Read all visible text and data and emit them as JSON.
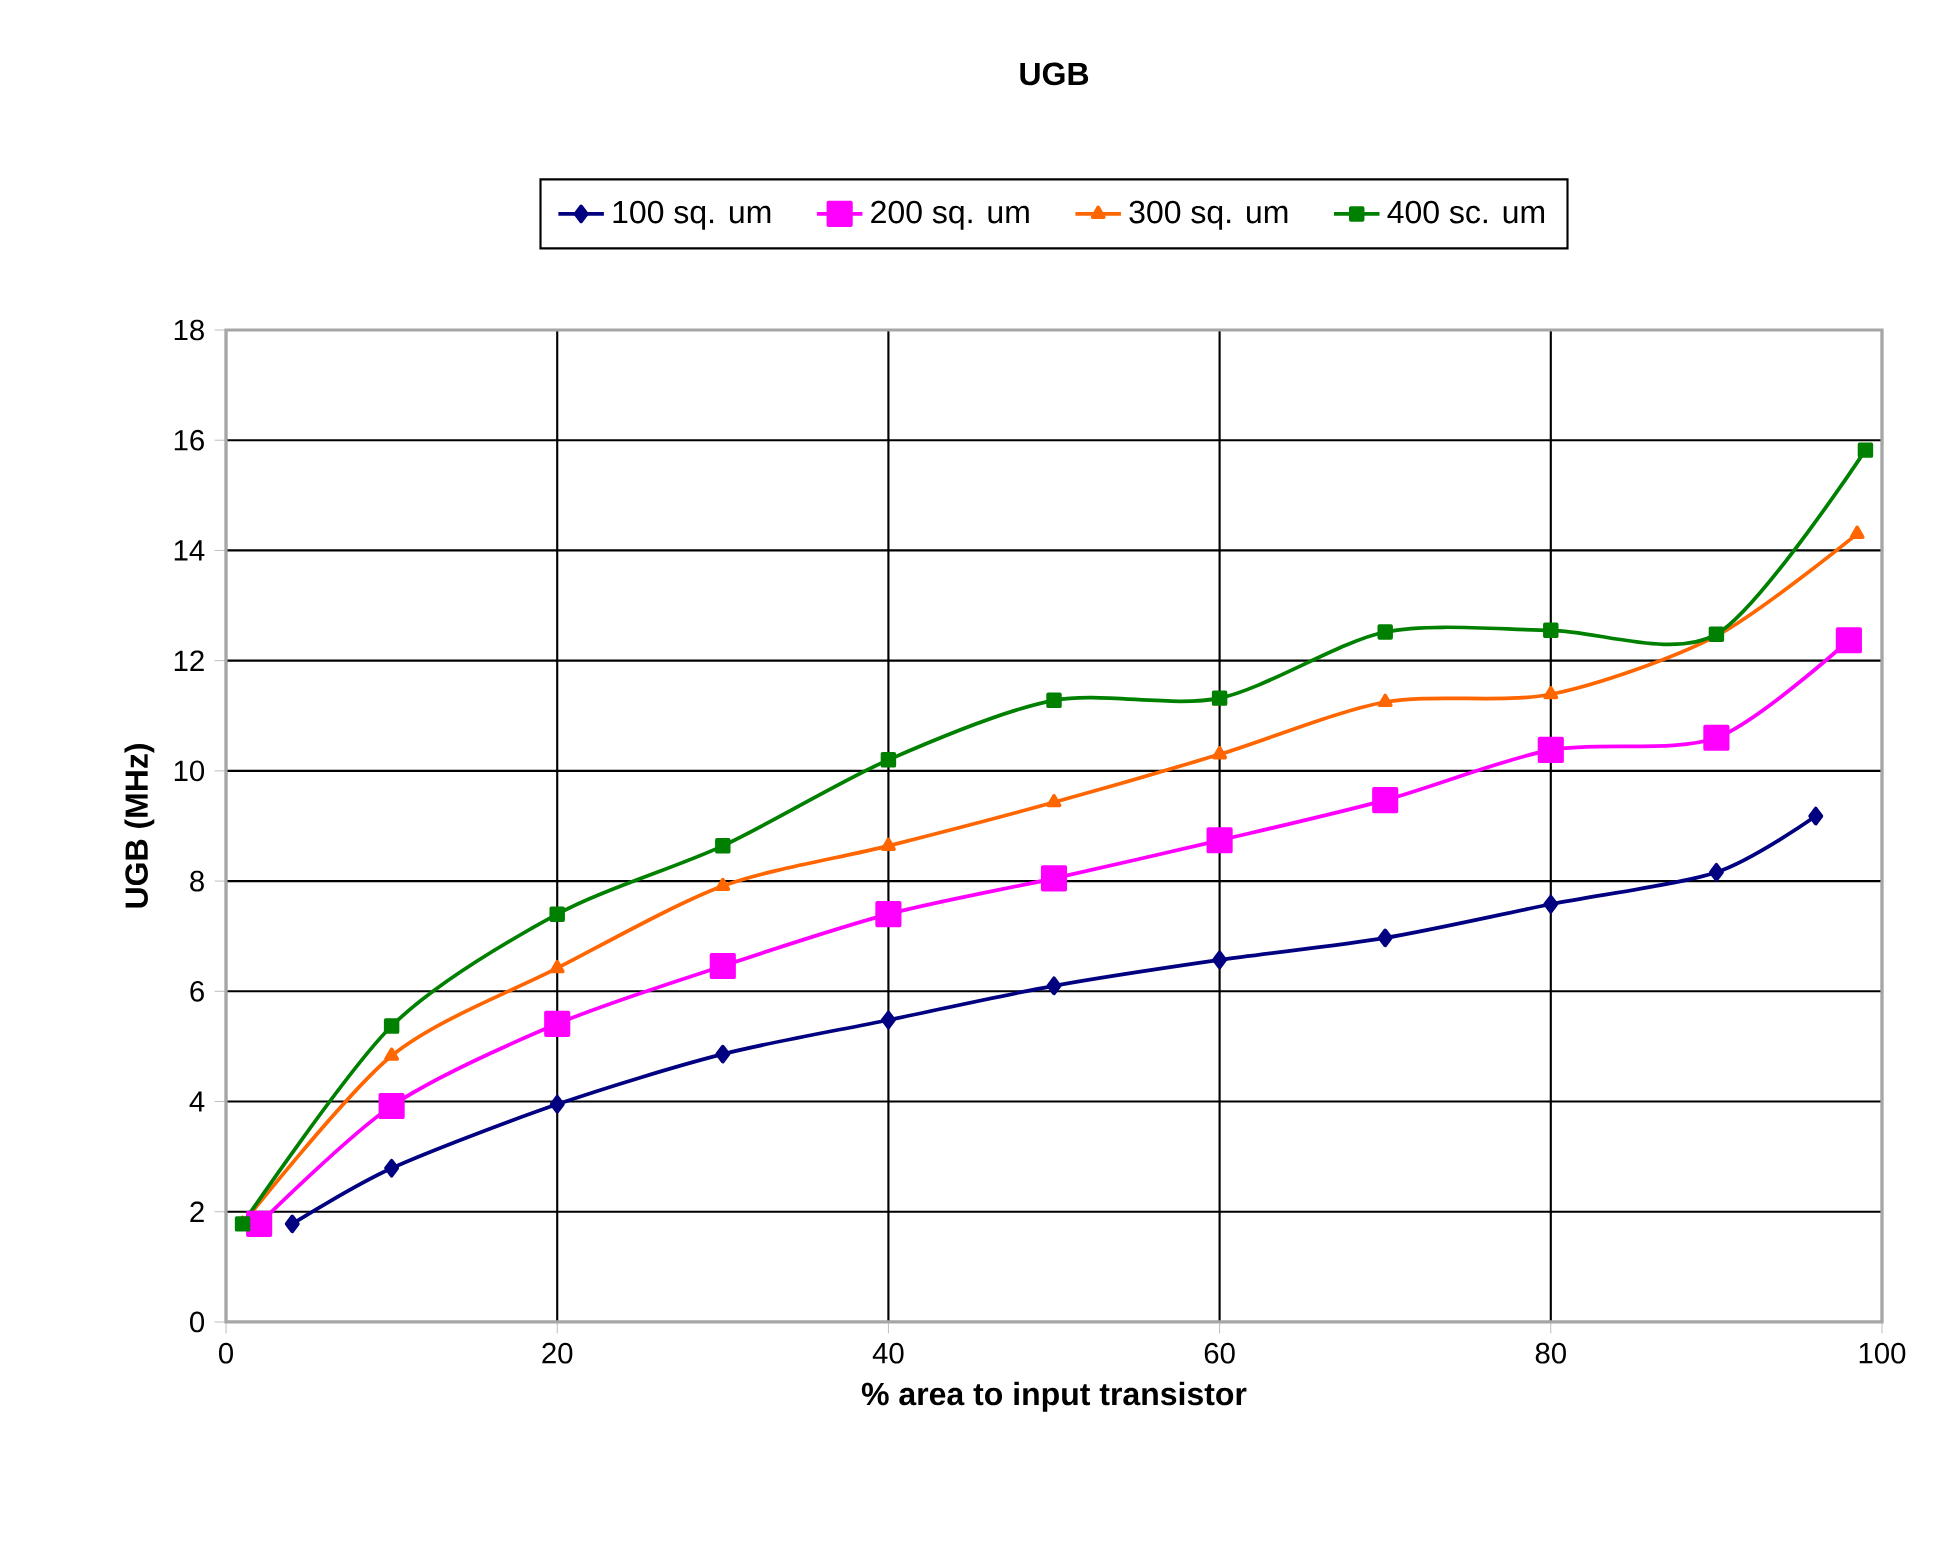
{
  "chart_data": {
    "type": "line",
    "title": "UGB",
    "xlabel": "% area to input transistor",
    "ylabel": "UGB (MHz)",
    "xlim": [
      0,
      100
    ],
    "ylim": [
      0,
      18
    ],
    "xticks": [
      0,
      20,
      40,
      60,
      80,
      100
    ],
    "yticks": [
      0,
      2,
      4,
      6,
      8,
      10,
      12,
      14,
      16,
      18
    ],
    "grid": true,
    "legend": "top",
    "series": [
      {
        "name": "100 sq. um",
        "color": "#000080",
        "marker": "diamond",
        "x": [
          4,
          10,
          20,
          30,
          40,
          50,
          60,
          70,
          80,
          90,
          96
        ],
        "values": [
          1.78,
          2.79,
          3.95,
          4.86,
          5.48,
          6.1,
          6.57,
          6.97,
          7.58,
          8.16,
          9.18
        ]
      },
      {
        "name": "200 sq. um",
        "color": "#ff00ff",
        "marker": "square",
        "x": [
          2,
          10,
          20,
          30,
          40,
          50,
          60,
          70,
          80,
          90,
          98
        ],
        "values": [
          1.78,
          3.92,
          5.41,
          6.46,
          7.4,
          8.05,
          8.74,
          9.47,
          10.38,
          10.6,
          12.37
        ]
      },
      {
        "name": "300 sq. um",
        "color": "#ff6600",
        "marker": "triangle",
        "x": [
          1,
          10,
          20,
          30,
          40,
          50,
          60,
          70,
          80,
          90,
          98.5
        ],
        "values": [
          1.78,
          4.83,
          6.42,
          7.91,
          8.64,
          9.43,
          10.3,
          11.25,
          11.39,
          12.45,
          14.3
        ]
      },
      {
        "name": "400 sc. um",
        "color": "#008000",
        "marker": "square",
        "x": [
          1,
          10,
          20,
          30,
          40,
          50,
          60,
          70,
          80,
          90,
          99
        ],
        "values": [
          1.78,
          5.37,
          7.4,
          8.64,
          10.2,
          11.28,
          11.32,
          12.52,
          12.55,
          12.48,
          15.82
        ]
      }
    ]
  }
}
